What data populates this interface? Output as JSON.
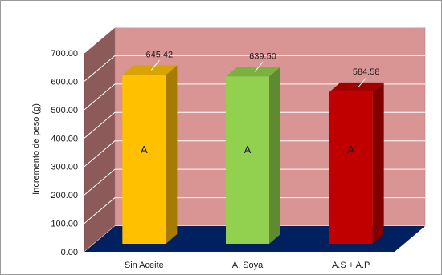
{
  "chart_data": {
    "type": "bar",
    "categories": [
      "Sin Aceite",
      "A. Soya",
      "A.S + A.P"
    ],
    "values": [
      645.42,
      639.5,
      584.58
    ],
    "data_labels": [
      "645.42",
      "639.50",
      "584.58"
    ],
    "group_letters": [
      "A",
      "A",
      "A"
    ],
    "ylabel": "Incremento de peso (g)",
    "xlabel": "",
    "ylim": [
      0,
      700
    ],
    "yticks": [
      "0.00",
      "100.00",
      "200.00",
      "300.00",
      "400.00",
      "500.00",
      "600.00",
      "700.00"
    ],
    "grid": true,
    "style": "3d-column",
    "colors": {
      "bars": [
        "#ffc000",
        "#92d050",
        "#c00000"
      ],
      "bar_sides": [
        "#a67c00",
        "#5f8a2f",
        "#800000"
      ],
      "bar_tops": [
        "#d9a400",
        "#7ab23f",
        "#a00000"
      ],
      "back_wall": "#d99594",
      "side_wall": "#8c5a59",
      "floor": "#002060",
      "gridline": "#ffffff"
    }
  }
}
